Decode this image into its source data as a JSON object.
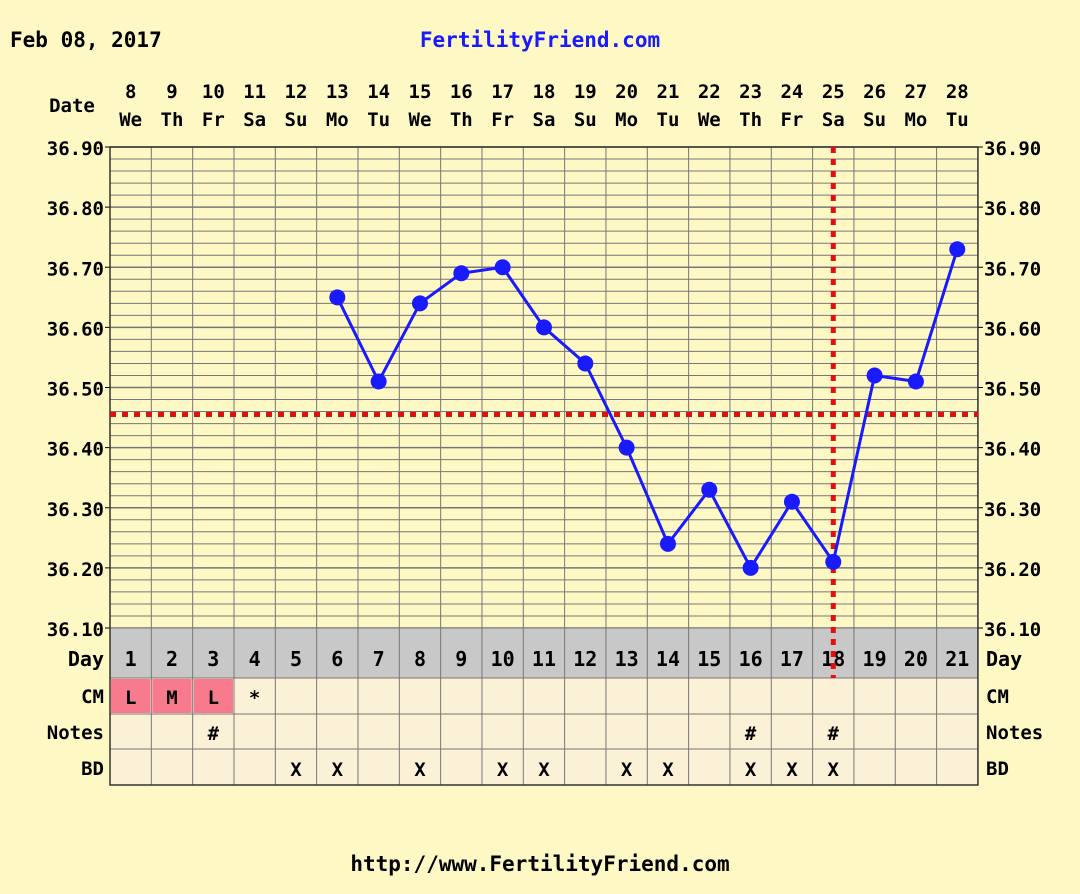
{
  "header": {
    "date": "Feb 08, 2017",
    "site": "FertilityFriend.com"
  },
  "footer": {
    "url": "http://www.FertilityFriend.com"
  },
  "labels": {
    "date": "Date",
    "day": "Day",
    "cm": "CM",
    "notes": "Notes",
    "bd": "BD"
  },
  "colors": {
    "background": "#fdf8c4",
    "line": "#1a1aff",
    "dashed": "#e01010",
    "grid": "#777777",
    "day_row_bg": "#c8c8c8",
    "row_bg": "#fbf1d6",
    "cm_highlight": "#f77b8c"
  },
  "chart_data": {
    "type": "line",
    "dates": [
      "8",
      "9",
      "10",
      "11",
      "12",
      "13",
      "14",
      "15",
      "16",
      "17",
      "18",
      "19",
      "20",
      "21",
      "22",
      "23",
      "24",
      "25",
      "26",
      "27",
      "28"
    ],
    "weekdays": [
      "We",
      "Th",
      "Fr",
      "Sa",
      "Su",
      "Mo",
      "Tu",
      "We",
      "Th",
      "Fr",
      "Sa",
      "Su",
      "Mo",
      "Tu",
      "We",
      "Th",
      "Fr",
      "Sa",
      "Su",
      "Mo",
      "Tu"
    ],
    "cycle_days": [
      "1",
      "2",
      "3",
      "4",
      "5",
      "6",
      "7",
      "8",
      "9",
      "10",
      "11",
      "12",
      "13",
      "14",
      "15",
      "16",
      "17",
      "18",
      "19",
      "20",
      "21"
    ],
    "temperatures": [
      null,
      null,
      null,
      null,
      null,
      36.65,
      36.51,
      36.64,
      36.69,
      36.7,
      36.6,
      36.54,
      36.4,
      36.24,
      36.33,
      36.2,
      36.31,
      36.21,
      36.52,
      36.51,
      36.73
    ],
    "y_ticks": [
      "36.90",
      "36.80",
      "36.70",
      "36.60",
      "36.50",
      "36.40",
      "36.30",
      "36.20",
      "36.10"
    ],
    "ylim": [
      36.1,
      36.9
    ],
    "coverline": 36.455,
    "ovulation_day_index": 17,
    "cm": [
      "L",
      "M",
      "L",
      "*",
      "",
      "",
      "",
      "",
      "",
      "",
      "",
      "",
      "",
      "",
      "",
      "",
      "",
      "",
      "",
      "",
      ""
    ],
    "notes": [
      "",
      "",
      "#",
      "",
      "",
      "",
      "",
      "",
      "",
      "",
      "",
      "",
      "",
      "",
      "",
      "#",
      "",
      "#",
      "",
      "",
      ""
    ],
    "bd": [
      "",
      "",
      "",
      "",
      "X",
      "X",
      "",
      "X",
      "",
      "X",
      "X",
      "",
      "X",
      "X",
      "",
      "X",
      "X",
      "X",
      "",
      "",
      ""
    ]
  }
}
